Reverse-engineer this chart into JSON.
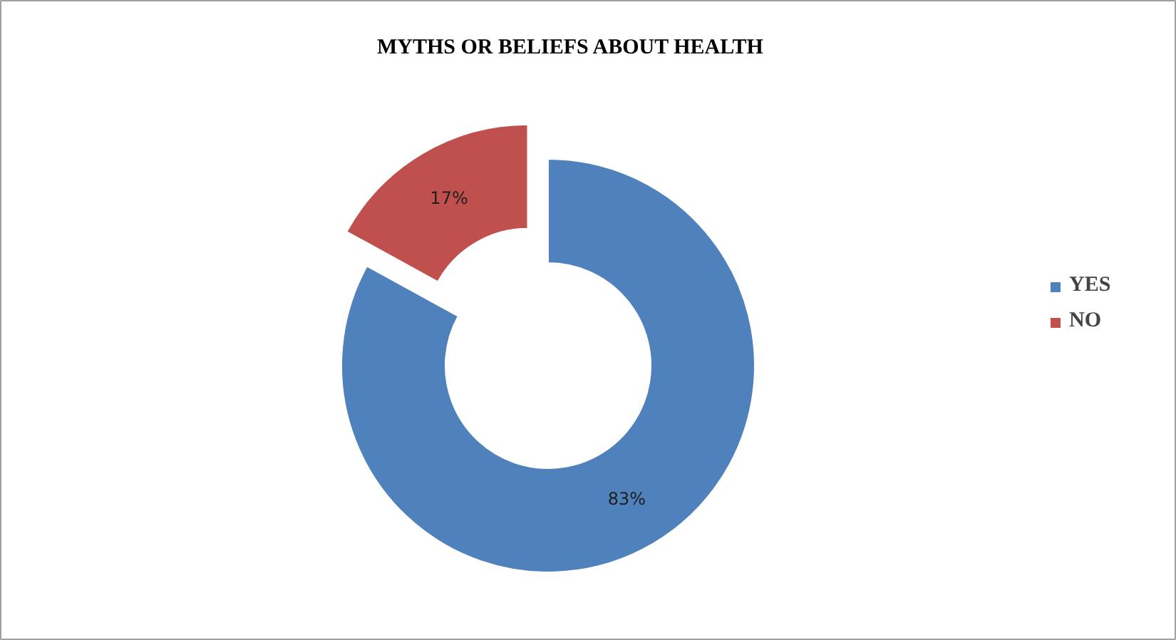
{
  "chart_data": {
    "type": "donut",
    "title": "MYTHS OR BELIEFS ABOUT HEALTH",
    "categories": [
      "YES",
      "NO"
    ],
    "values": [
      83,
      17
    ],
    "colors": [
      "#4f81bd",
      "#c0504d"
    ],
    "value_labels": [
      "83%",
      "17%"
    ],
    "legend": "right"
  }
}
